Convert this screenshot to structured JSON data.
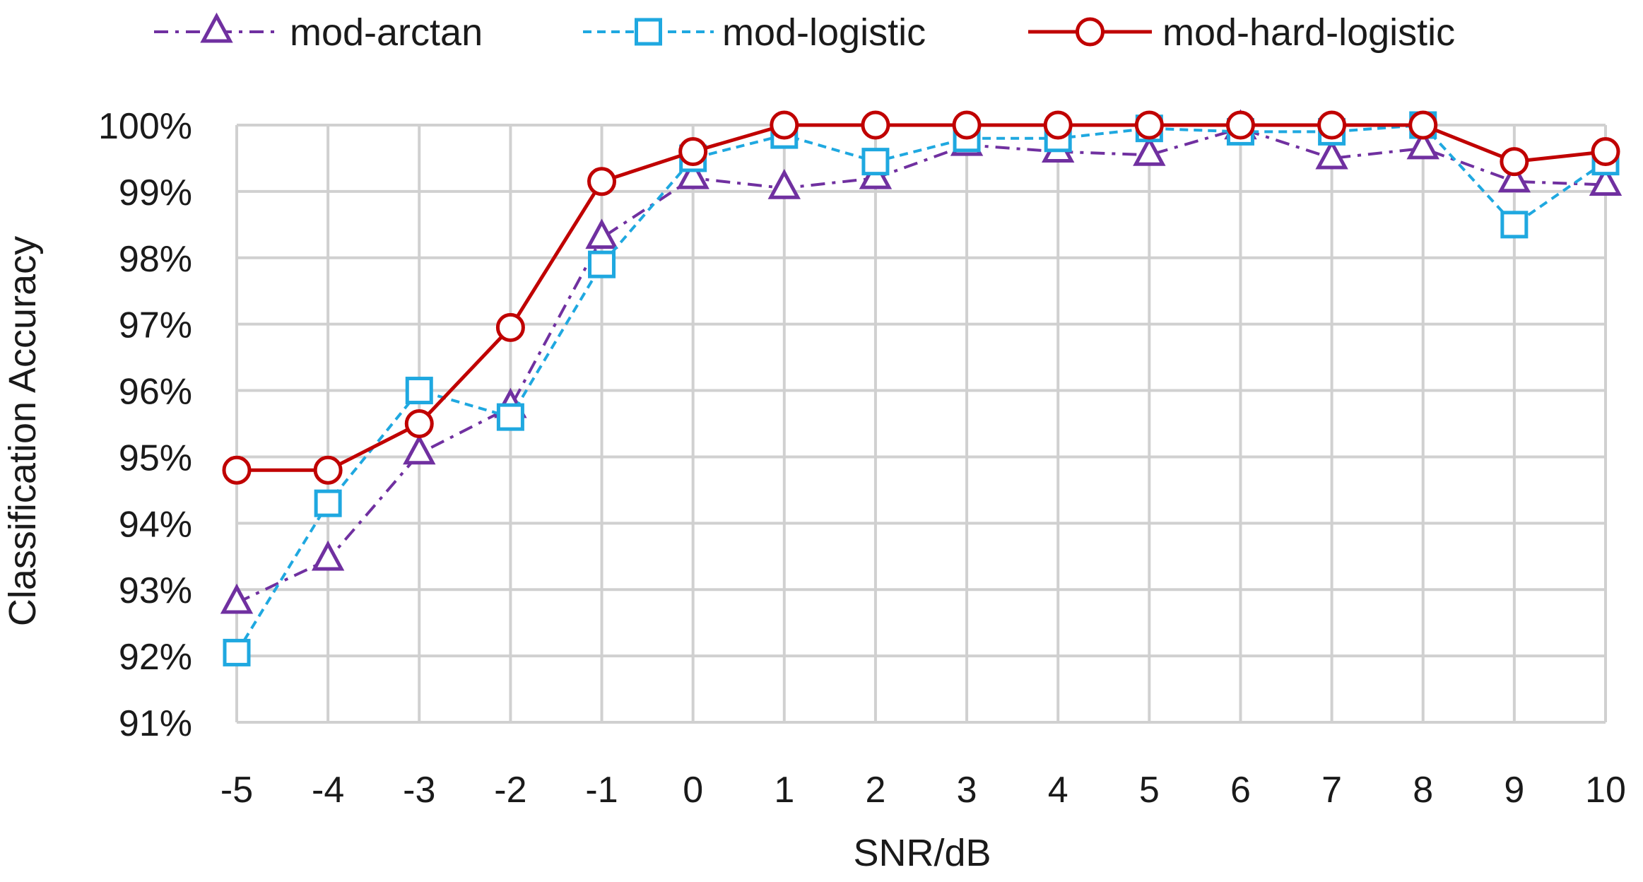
{
  "chart_data": {
    "type": "line",
    "title": "",
    "xlabel": "SNR/dB",
    "ylabel": "Classification Accuracy",
    "x": [
      -5,
      -4,
      -3,
      -2,
      -1,
      0,
      1,
      2,
      3,
      4,
      5,
      6,
      7,
      8,
      9,
      10
    ],
    "x_tick_labels": [
      "-5",
      "-4",
      "-3",
      "-2",
      "-1",
      "0",
      "1",
      "2",
      "3",
      "4",
      "5",
      "6",
      "7",
      "8",
      "9",
      "10"
    ],
    "ylim": [
      91,
      100
    ],
    "y_ticks": [
      91,
      92,
      93,
      94,
      95,
      96,
      97,
      98,
      99,
      100
    ],
    "y_tick_labels": [
      "91%",
      "92%",
      "93%",
      "94%",
      "95%",
      "96%",
      "97%",
      "98%",
      "99%",
      "100%"
    ],
    "grid": true,
    "legend_position": "top",
    "series": [
      {
        "name": "mod-arctan",
        "color": "#7030a0",
        "line_style": "dash-dot",
        "marker": "triangle",
        "values": [
          92.8,
          93.45,
          95.05,
          95.75,
          98.3,
          99.2,
          99.05,
          99.2,
          99.7,
          99.6,
          99.55,
          99.95,
          99.5,
          99.65,
          99.15,
          99.1
        ]
      },
      {
        "name": "mod-logistic",
        "color": "#1fa8e0",
        "line_style": "dashed",
        "marker": "square",
        "values": [
          92.05,
          94.3,
          96.0,
          95.6,
          97.9,
          99.5,
          99.85,
          99.45,
          99.8,
          99.8,
          99.95,
          99.9,
          99.9,
          100.0,
          98.5,
          99.45
        ]
      },
      {
        "name": "mod-hard-logistic",
        "color": "#c00000",
        "line_style": "solid",
        "marker": "circle",
        "values": [
          94.8,
          94.8,
          95.5,
          96.95,
          99.15,
          99.6,
          100.0,
          100.0,
          100.0,
          100.0,
          100.0,
          100.0,
          100.0,
          100.0,
          99.45,
          99.6
        ]
      }
    ]
  }
}
